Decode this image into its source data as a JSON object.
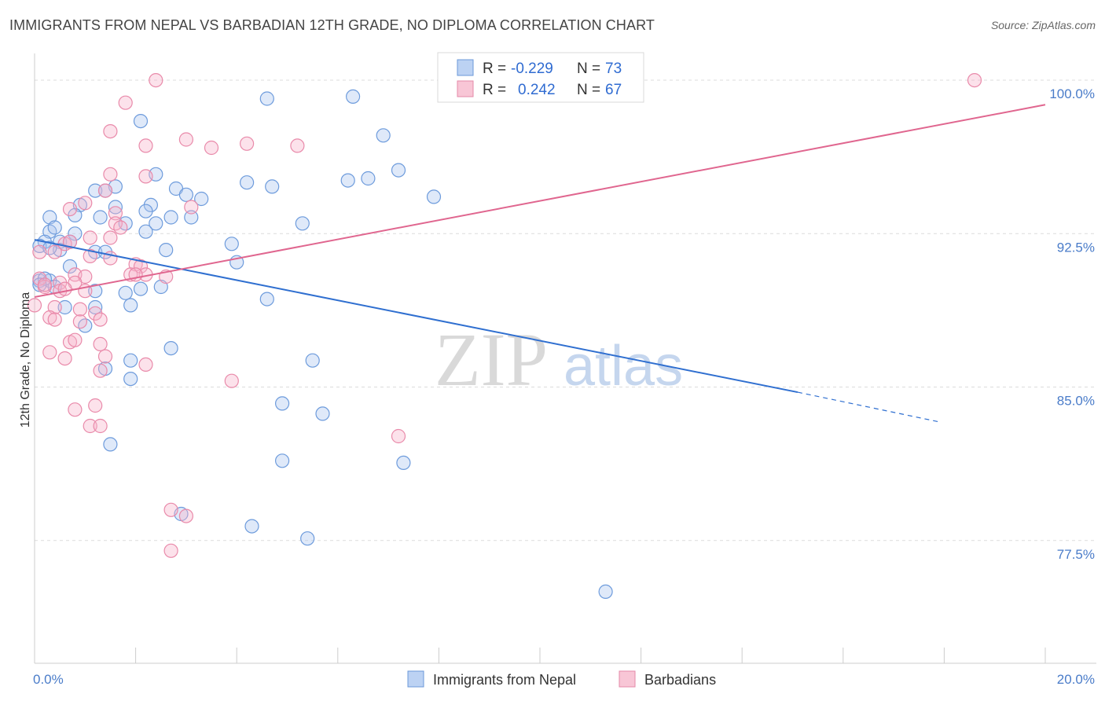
{
  "title": "IMMIGRANTS FROM NEPAL VS BARBADIAN 12TH GRADE, NO DIPLOMA CORRELATION CHART",
  "source": "Source: ZipAtlas.com",
  "watermark": {
    "zip": "ZIP",
    "atlas": "atlas"
  },
  "colors": {
    "nepal": "#5b8fd6",
    "nepal_fill": "rgba(160,192,240,0.35)",
    "barbadian": "#e8799f",
    "barbadian_fill": "rgba(245,170,195,0.35)",
    "nepal_line": "#2f6fd0",
    "barbadian_line": "#e0668f"
  },
  "legend": {
    "nepal": {
      "r_label": "R =",
      "r_value": "-0.229",
      "n_label": "N =",
      "n_value": "73"
    },
    "barbadian": {
      "r_label": "R =",
      "r_value": "0.242",
      "n_label": "N =",
      "n_value": "67"
    }
  },
  "bottom_legend": [
    "Immigrants from Nepal",
    "Barbadians"
  ],
  "chart_data": {
    "type": "scatter",
    "title": "IMMIGRANTS FROM NEPAL VS BARBADIAN 12TH GRADE, NO DIPLOMA CORRELATION CHART",
    "xlabel": "",
    "ylabel": "12th Grade, No Diploma",
    "xlim": [
      0,
      20
    ],
    "ylim": [
      71.5,
      101.5
    ],
    "x_tick_labels": [
      "0.0%",
      "20.0%"
    ],
    "y_ticks": [
      77.5,
      85.0,
      92.5,
      100.0
    ],
    "y_tick_labels": [
      "77.5%",
      "85.0%",
      "92.5%",
      "100.0%"
    ],
    "series": [
      {
        "name": "Immigrants from Nepal",
        "R": -0.229,
        "N": 73,
        "trend": {
          "x0": 0.0,
          "y0": 92.2,
          "x1": 15.1,
          "y1": 84.75,
          "dash_x1": 17.9,
          "dash_y1": 83.3
        },
        "points": [
          [
            4.6,
            99.1
          ],
          [
            6.3,
            99.2
          ],
          [
            2.1,
            98.0
          ],
          [
            6.9,
            97.3
          ],
          [
            7.2,
            95.6
          ],
          [
            2.4,
            95.4
          ],
          [
            6.2,
            95.1
          ],
          [
            6.6,
            95.2
          ],
          [
            4.2,
            95.0
          ],
          [
            4.7,
            94.8
          ],
          [
            1.6,
            94.8
          ],
          [
            2.8,
            94.7
          ],
          [
            1.2,
            94.6
          ],
          [
            1.4,
            94.6
          ],
          [
            3.0,
            94.4
          ],
          [
            7.9,
            94.3
          ],
          [
            3.3,
            94.2
          ],
          [
            0.9,
            93.9
          ],
          [
            1.6,
            93.8
          ],
          [
            2.3,
            93.9
          ],
          [
            2.2,
            93.6
          ],
          [
            0.3,
            93.3
          ],
          [
            0.8,
            93.4
          ],
          [
            1.3,
            93.3
          ],
          [
            2.7,
            93.3
          ],
          [
            3.1,
            93.3
          ],
          [
            1.8,
            93.0
          ],
          [
            2.4,
            93.0
          ],
          [
            5.3,
            93.0
          ],
          [
            0.3,
            92.6
          ],
          [
            0.4,
            92.8
          ],
          [
            0.8,
            92.5
          ],
          [
            2.2,
            92.6
          ],
          [
            0.2,
            92.1
          ],
          [
            0.5,
            92.1
          ],
          [
            0.7,
            92.1
          ],
          [
            3.9,
            92.0
          ],
          [
            0.1,
            91.9
          ],
          [
            0.5,
            91.7
          ],
          [
            1.2,
            91.6
          ],
          [
            1.4,
            91.6
          ],
          [
            2.6,
            91.7
          ],
          [
            4.0,
            91.1
          ],
          [
            0.7,
            90.9
          ],
          [
            0.1,
            90.2
          ],
          [
            0.3,
            90.2
          ],
          [
            1.2,
            89.7
          ],
          [
            1.8,
            89.6
          ],
          [
            2.1,
            89.8
          ],
          [
            2.5,
            89.9
          ],
          [
            4.6,
            89.3
          ],
          [
            1.9,
            89.0
          ],
          [
            0.6,
            88.9
          ],
          [
            1.2,
            88.9
          ],
          [
            1.0,
            88.0
          ],
          [
            2.7,
            86.9
          ],
          [
            5.5,
            86.3
          ],
          [
            1.9,
            86.3
          ],
          [
            1.4,
            85.9
          ],
          [
            1.9,
            85.4
          ],
          [
            4.9,
            84.2
          ],
          [
            5.7,
            83.7
          ],
          [
            1.5,
            82.2
          ],
          [
            4.9,
            81.4
          ],
          [
            7.3,
            81.3
          ],
          [
            2.9,
            78.8
          ],
          [
            4.3,
            78.2
          ],
          [
            5.4,
            77.6
          ],
          [
            11.3,
            75.0
          ],
          [
            0.2,
            90.3
          ],
          [
            0.1,
            90.0
          ],
          [
            0.4,
            89.9
          ],
          [
            0.3,
            91.8
          ]
        ]
      },
      {
        "name": "Barbadians",
        "R": 0.242,
        "N": 67,
        "trend": {
          "x0": 0.0,
          "y0": 89.4,
          "x1": 20.0,
          "y1": 98.8
        },
        "points": [
          [
            2.4,
            100.0
          ],
          [
            18.6,
            100.0
          ],
          [
            1.8,
            98.9
          ],
          [
            1.5,
            97.5
          ],
          [
            3.0,
            97.1
          ],
          [
            2.2,
            96.8
          ],
          [
            3.5,
            96.7
          ],
          [
            4.2,
            96.9
          ],
          [
            5.2,
            96.8
          ],
          [
            1.5,
            95.4
          ],
          [
            2.2,
            95.3
          ],
          [
            1.4,
            94.6
          ],
          [
            1.0,
            94.0
          ],
          [
            0.7,
            93.7
          ],
          [
            1.6,
            93.5
          ],
          [
            3.1,
            93.8
          ],
          [
            1.6,
            93.0
          ],
          [
            1.7,
            92.8
          ],
          [
            1.1,
            92.3
          ],
          [
            1.5,
            92.3
          ],
          [
            0.6,
            92.0
          ],
          [
            0.7,
            92.1
          ],
          [
            0.1,
            91.6
          ],
          [
            0.4,
            91.6
          ],
          [
            1.1,
            91.4
          ],
          [
            1.5,
            91.3
          ],
          [
            2.0,
            91.0
          ],
          [
            2.1,
            90.9
          ],
          [
            0.8,
            90.5
          ],
          [
            1.0,
            90.4
          ],
          [
            1.9,
            90.5
          ],
          [
            2.2,
            90.5
          ],
          [
            2.6,
            90.4
          ],
          [
            0.1,
            90.3
          ],
          [
            0.5,
            90.1
          ],
          [
            0.8,
            90.1
          ],
          [
            0.2,
            89.9
          ],
          [
            0.5,
            89.7
          ],
          [
            0.6,
            89.8
          ],
          [
            1.0,
            89.7
          ],
          [
            0.0,
            89.0
          ],
          [
            0.4,
            88.9
          ],
          [
            0.9,
            88.8
          ],
          [
            1.2,
            88.6
          ],
          [
            0.3,
            88.4
          ],
          [
            0.4,
            88.3
          ],
          [
            0.9,
            88.2
          ],
          [
            1.3,
            88.3
          ],
          [
            0.7,
            87.2
          ],
          [
            0.8,
            87.3
          ],
          [
            1.3,
            87.1
          ],
          [
            0.3,
            86.7
          ],
          [
            0.6,
            86.4
          ],
          [
            1.4,
            86.5
          ],
          [
            2.2,
            86.1
          ],
          [
            1.3,
            85.8
          ],
          [
            3.9,
            85.3
          ],
          [
            1.2,
            84.1
          ],
          [
            0.8,
            83.9
          ],
          [
            1.1,
            83.1
          ],
          [
            1.3,
            83.1
          ],
          [
            7.2,
            82.6
          ],
          [
            2.7,
            79.0
          ],
          [
            3.0,
            78.7
          ],
          [
            2.7,
            77.0
          ],
          [
            2.0,
            90.5
          ],
          [
            0.2,
            90.0
          ]
        ]
      }
    ]
  }
}
